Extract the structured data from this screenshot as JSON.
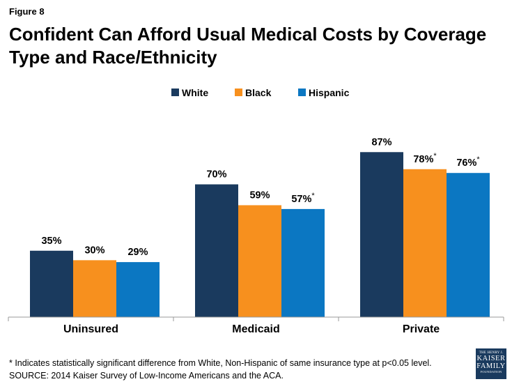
{
  "figure_label": "Figure 8",
  "footnotes": {
    "line1": "* Indicates statistically significant difference from White, Non-Hispanic of same insurance type at p<0.05 level.",
    "line2": "SOURCE: 2014 Kaiser Survey of Low-Income Americans and the ACA."
  },
  "logo": {
    "line1": "THE HENRY J.",
    "line2a": "KAISER",
    "line2b": "FAMILY",
    "line3": "FOUNDATION"
  },
  "chart_data": {
    "type": "bar",
    "title": "Confident Can Afford Usual Medical Costs by Coverage Type and Race/Ethnicity",
    "xlabel": "",
    "ylabel": "",
    "ylim": [
      0,
      100
    ],
    "grid": false,
    "legend_position": "top-center",
    "categories": [
      "Uninsured",
      "Medicaid",
      "Private"
    ],
    "series": [
      {
        "name": "White",
        "color": "#1a3a5e",
        "values": [
          35,
          70,
          87
        ],
        "labels": [
          "35%",
          "70%",
          "87%"
        ]
      },
      {
        "name": "Black",
        "color": "#f7901e",
        "values": [
          30,
          59,
          78
        ],
        "labels": [
          "30%",
          "59%",
          "78%*"
        ]
      },
      {
        "name": "Hispanic",
        "color": "#0b77c2",
        "values": [
          29,
          57,
          76
        ],
        "labels": [
          "29%",
          "57%*",
          "76%*"
        ]
      }
    ]
  }
}
